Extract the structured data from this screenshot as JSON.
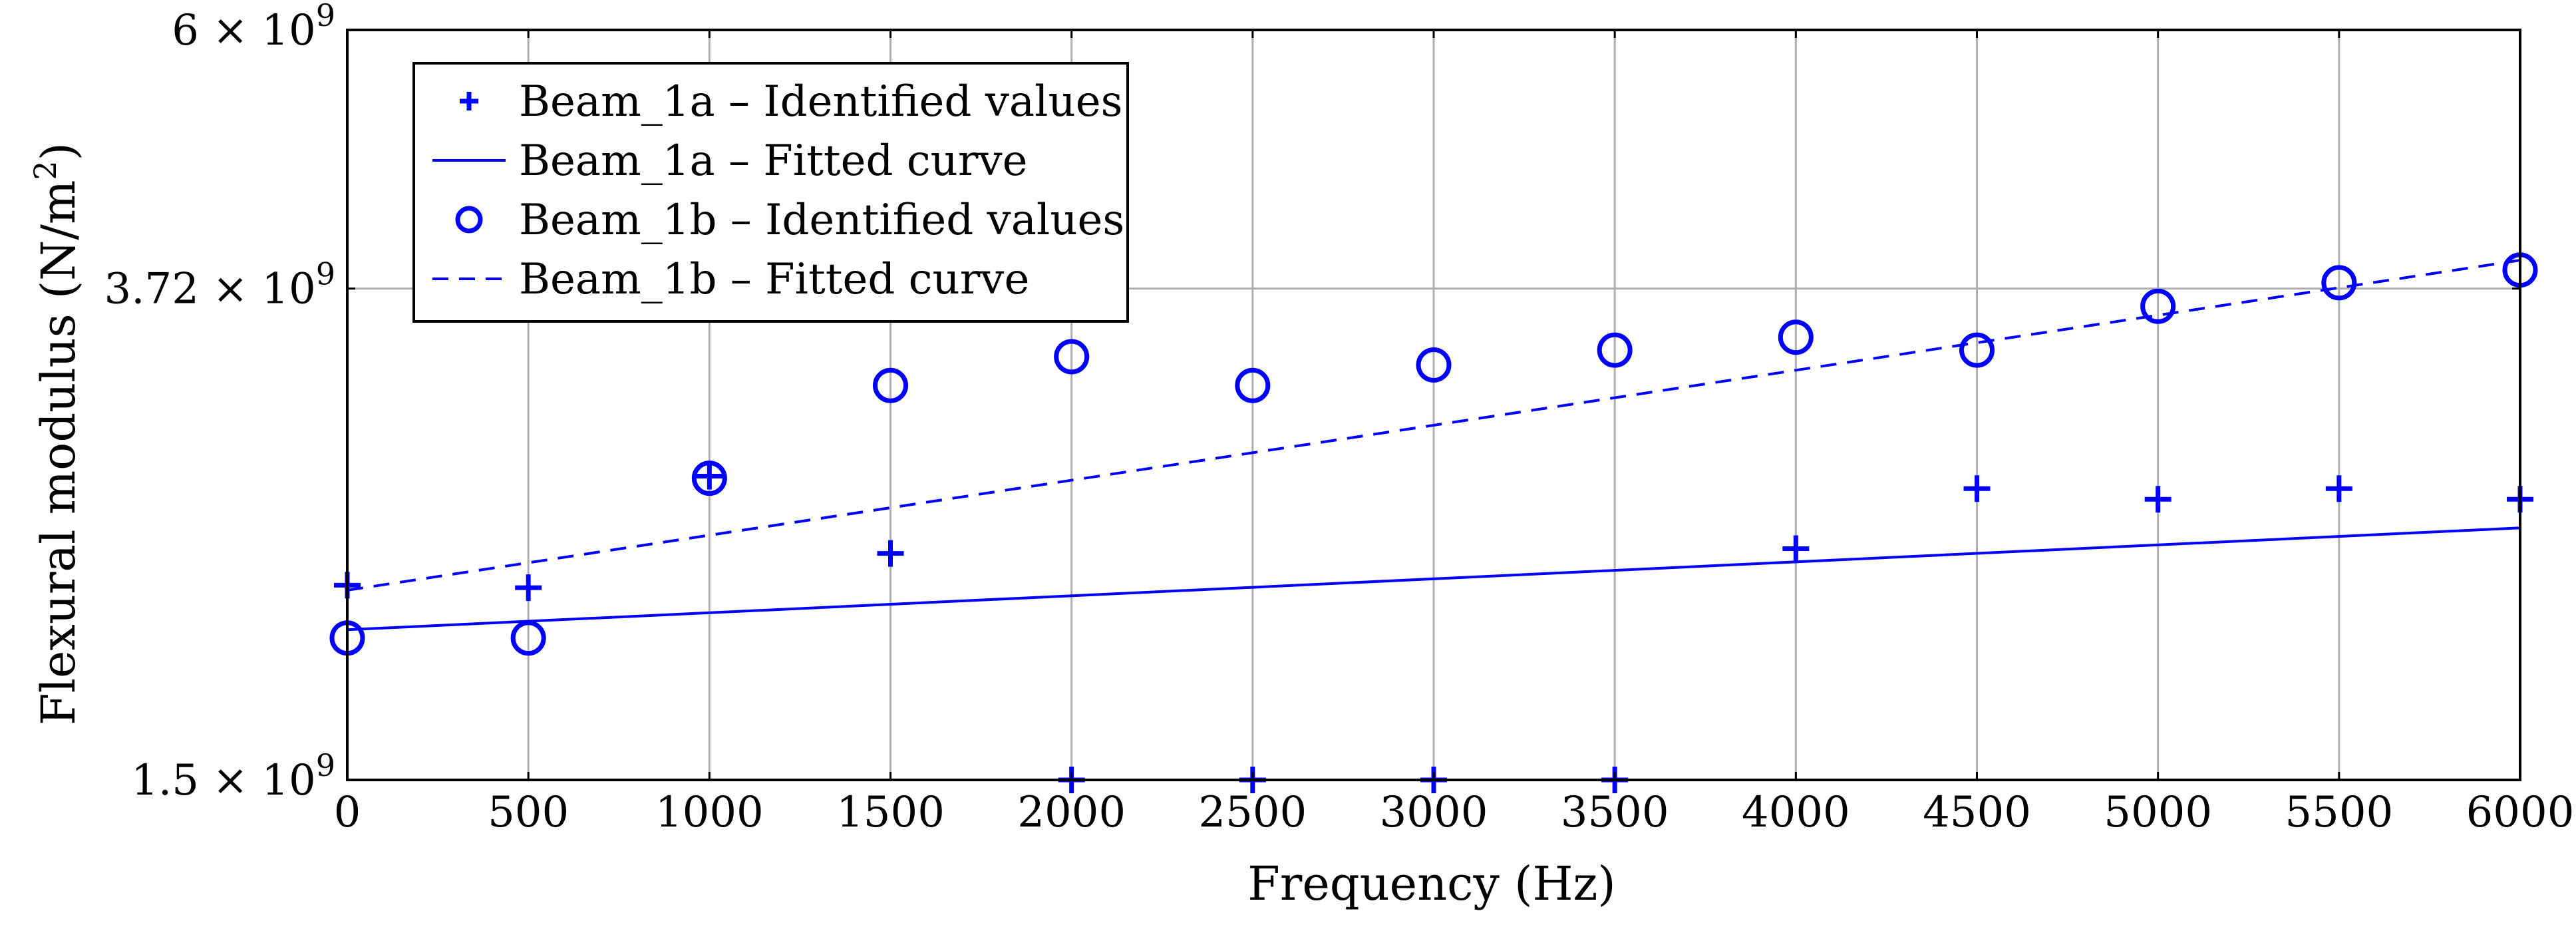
{
  "chart_data": {
    "type": "scatter",
    "xlabel": "Frequency (Hz)",
    "ylabel": "Flexural modulus (N/m",
    "ylabel_superscript": "2",
    "ylabel_suffix": ")",
    "xlim": [
      0,
      6000
    ],
    "ylim": [
      1500000000.0,
      6000000000.0
    ],
    "grid": true,
    "legend_position": "top-left",
    "x_ticks": [
      {
        "value": 0,
        "label": "0"
      },
      {
        "value": 500,
        "label": "500"
      },
      {
        "value": 1000,
        "label": "1000"
      },
      {
        "value": 1500,
        "label": "1500"
      },
      {
        "value": 2000,
        "label": "2000"
      },
      {
        "value": 2500,
        "label": "2500"
      },
      {
        "value": 3000,
        "label": "3000"
      },
      {
        "value": 3500,
        "label": "3500"
      },
      {
        "value": 4000,
        "label": "4000"
      },
      {
        "value": 4500,
        "label": "4500"
      },
      {
        "value": 5000,
        "label": "5000"
      },
      {
        "value": 5500,
        "label": "5500"
      },
      {
        "value": 6000,
        "label": "6000"
      }
    ],
    "y_ticks": [
      {
        "value": 1500000000.0,
        "mantissa": "1.5",
        "times": "×",
        "base": "10",
        "exp": "9"
      },
      {
        "value": 3720000000.0,
        "mantissa": "3.72",
        "times": "×",
        "base": "10",
        "exp": "9"
      },
      {
        "value": 6000000000.0,
        "mantissa": "6",
        "times": "×",
        "base": "10",
        "exp": "9"
      }
    ],
    "series": [
      {
        "name": "Beam_1a – Identified values",
        "style": "plus-marker",
        "x": [
          0,
          500,
          1000,
          1500,
          2000,
          2500,
          3000,
          3500,
          4000,
          4500,
          5000,
          5500,
          6000
        ],
        "y": [
          2150000000.0,
          2140000000.0,
          2630000000.0,
          2280000000.0,
          1500000000.0,
          1500000000.0,
          1500000000.0,
          1500000000.0,
          2300000000.0,
          2570000000.0,
          2520000000.0,
          2570000000.0,
          2520000000.0
        ]
      },
      {
        "name": "Beam_1a – Fitted curve",
        "style": "solid-line",
        "x": [
          0,
          6000
        ],
        "y": [
          1980000000.0,
          2390000000.0
        ]
      },
      {
        "name": "Beam_1b – Identified values",
        "style": "circle-marker",
        "x": [
          0,
          500,
          1000,
          1500,
          2000,
          2500,
          3000,
          3500,
          4000,
          4500,
          5000,
          5500,
          6000
        ],
        "y": [
          1950000000.0,
          1950000000.0,
          2620000000.0,
          3110000000.0,
          3280000000.0,
          3110000000.0,
          3230000000.0,
          3320000000.0,
          3400000000.0,
          3320000000.0,
          3600000000.0,
          3760000000.0,
          3850000000.0
        ]
      },
      {
        "name": "Beam_1b – Fitted curve",
        "style": "dashed-line",
        "x": [
          0,
          6000
        ],
        "y": [
          2130000000.0,
          3920000000.0
        ]
      }
    ]
  },
  "colors": {
    "series": "#0000ff",
    "grid": "#b0b0b0",
    "frame": "#000000"
  }
}
